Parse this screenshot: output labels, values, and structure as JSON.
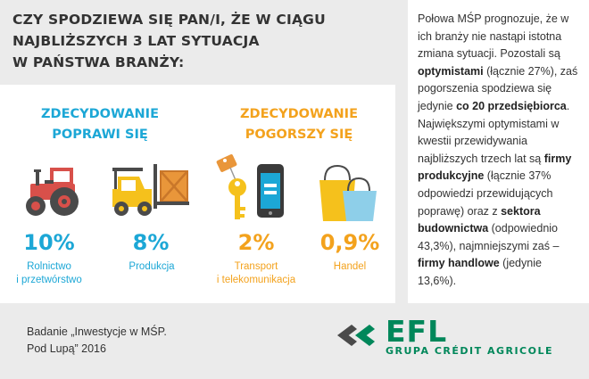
{
  "question": {
    "line1": "CZY SPODZIEWA SIĘ PAN/I, ŻE W CIĄGU",
    "line2": "NAJBLIŻSZYCH 3 LAT SYTUACJA",
    "line3": "W PAŃSTWA BRANŻY:"
  },
  "groups": {
    "improve": {
      "line1": "ZDECYDOWANIE",
      "line2": "POPRAWI SIĘ"
    },
    "worsen": {
      "line1": "ZDECYDOWANIE",
      "line2": "POGORSZY SIĘ"
    }
  },
  "sectors": [
    {
      "pct": "10%",
      "name_line1": "Rolnictwo",
      "name_line2": "i przetwórstwo",
      "icon": "tractor-icon",
      "color": "#1ca7d6"
    },
    {
      "pct": "8%",
      "name_line1": "Produkcja",
      "name_line2": "",
      "icon": "forklift-icon",
      "color": "#1ca7d6"
    },
    {
      "pct": "2%",
      "name_line1": "Transport",
      "name_line2": "i telekomunikacja",
      "icon": "key-phone-icon",
      "color": "#f3a21d"
    },
    {
      "pct": "0,9%",
      "name_line1": "Handel",
      "name_line2": "",
      "icon": "shopping-bags-icon",
      "color": "#f3a21d"
    }
  ],
  "summary": {
    "t1": "Połowa MŚP prognozuje, że w ich branży nie nastąpi istotna zmiana sytuacji. Pozostali są ",
    "b1": "optymistami",
    "t2": " (łącznie 27%), zaś pogorszenia spodziewa się jedynie ",
    "b2": "co 20 przedsiębiorca",
    "t3": ". Największymi optymistami w kwestii przewidywania najbliższych trzech lat są ",
    "b3": "firmy produkcyjne",
    "t4": " (łącznie 37% odpowiedzi przewidujących poprawę) oraz z ",
    "b4": "sektora budownictwa",
    "t5": " (odpowiednio 43,3%), najmniejszymi zaś – ",
    "b5": "firmy handlowe",
    "t6": " (jedynie 13,6%)."
  },
  "source": {
    "line1": "Badanie „Inwestycje w MŚP.",
    "line2": "Pod Lupą” 2016"
  },
  "logo": {
    "brand": "EFL",
    "sub": "GRUPA CRÉDIT AGRICOLE"
  },
  "colors": {
    "improve": "#1ca7d6",
    "worsen": "#f3a21d",
    "tractor": "#d8504a",
    "forklift": "#f5c11c",
    "crate": "#e9963a",
    "brand": "#00875a",
    "panel": "#ebebeb"
  }
}
